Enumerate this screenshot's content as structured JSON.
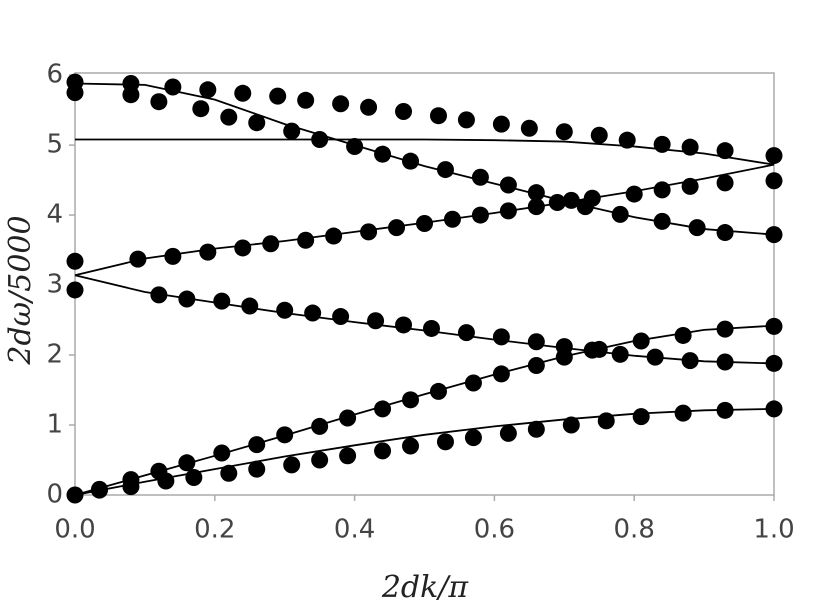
{
  "chart_data": {
    "type": "line",
    "x_label": "2dk/π",
    "y_label": "2dω/5000",
    "xlim": [
      0,
      1
    ],
    "ylim": [
      0,
      6.03
    ],
    "xticks": [
      {
        "value": 0,
        "label": "0.0"
      },
      0.2,
      0.4,
      0.6,
      0.8,
      {
        "value": 1,
        "label": "1.0"
      }
    ],
    "yticks": [
      0,
      1,
      2,
      3,
      4,
      5,
      6
    ],
    "series": [
      {
        "type": "line",
        "color": "#000000",
        "x": [
          0,
          0.1,
          0.2,
          0.3,
          0.4,
          0.5,
          0.6,
          0.7,
          0.8,
          0.9,
          1.0
        ],
        "values": [
          0,
          0.19,
          0.37,
          0.55,
          0.71,
          0.86,
          0.98,
          1.08,
          1.16,
          1.21,
          1.23
        ]
      },
      {
        "type": "line",
        "color": "#000000",
        "x": [
          0,
          0.1,
          0.2,
          0.3,
          0.4,
          0.5,
          0.6,
          0.7,
          0.8,
          0.9,
          1.0
        ],
        "values": [
          0,
          0.28,
          0.56,
          0.85,
          1.15,
          1.44,
          1.72,
          1.98,
          2.2,
          2.36,
          2.42
        ]
      },
      {
        "type": "line",
        "color": "#000000",
        "x": [
          0,
          0.1,
          0.2,
          0.3,
          0.4,
          0.5,
          0.6,
          0.7,
          0.8,
          0.9,
          1.0
        ],
        "values": [
          3.14,
          2.9,
          2.75,
          2.6,
          2.47,
          2.35,
          2.22,
          2.1,
          1.99,
          1.91,
          1.88
        ]
      },
      {
        "type": "line",
        "color": "#000000",
        "x": [
          0,
          0.1,
          0.2,
          0.3,
          0.4,
          0.5,
          0.6,
          0.7,
          0.8,
          0.9,
          1.0
        ],
        "values": [
          3.14,
          3.38,
          3.52,
          3.63,
          3.76,
          3.89,
          4.03,
          4.18,
          4.34,
          4.52,
          4.72
        ]
      },
      {
        "type": "line",
        "color": "#000000",
        "x": [
          0,
          0.1,
          0.2,
          0.3,
          0.4,
          0.5,
          0.6,
          0.7,
          0.8,
          0.9,
          1.0
        ],
        "values": [
          5.08,
          5.08,
          5.08,
          5.08,
          5.08,
          5.08,
          5.07,
          5.05,
          4.98,
          4.88,
          4.72
        ]
      },
      {
        "type": "line",
        "color": "#000000",
        "x": [
          0,
          0.1,
          0.2,
          0.3,
          0.4,
          0.5,
          0.6,
          0.7,
          0.8,
          0.9,
          1.0
        ],
        "values": [
          5.88,
          5.86,
          5.65,
          5.3,
          5.0,
          4.7,
          4.45,
          4.2,
          3.97,
          3.8,
          3.72
        ]
      },
      {
        "type": "scatter",
        "color": "#000000",
        "x": [
          0,
          0.035,
          0.08,
          0.13,
          0.17,
          0.22,
          0.26,
          0.31,
          0.35,
          0.39,
          0.44,
          0.48,
          0.53,
          0.57,
          0.62,
          0.66,
          0.71,
          0.76,
          0.81,
          0.87,
          0.93,
          1.0
        ],
        "values": [
          0,
          0.07,
          0.12,
          0.2,
          0.25,
          0.31,
          0.37,
          0.43,
          0.5,
          0.56,
          0.63,
          0.7,
          0.76,
          0.82,
          0.88,
          0.94,
          1.0,
          1.06,
          1.12,
          1.17,
          1.21,
          1.23
        ]
      },
      {
        "type": "scatter",
        "color": "#000000",
        "x": [
          0.035,
          0.08,
          0.12,
          0.16,
          0.21,
          0.26,
          0.3,
          0.35,
          0.39,
          0.44,
          0.48,
          0.52,
          0.57,
          0.61,
          0.66,
          0.7,
          0.75,
          0.81,
          0.87,
          0.93,
          1.0
        ],
        "values": [
          0.08,
          0.22,
          0.34,
          0.46,
          0.6,
          0.72,
          0.86,
          0.98,
          1.1,
          1.23,
          1.36,
          1.48,
          1.6,
          1.73,
          1.85,
          1.97,
          2.08,
          2.2,
          2.28,
          2.37,
          2.41
        ]
      },
      {
        "type": "scatter",
        "color": "#000000",
        "x": [
          0,
          0.12,
          0.16,
          0.21,
          0.25,
          0.3,
          0.34,
          0.38,
          0.43,
          0.47,
          0.51,
          0.56,
          0.61,
          0.66,
          0.7,
          0.74,
          0.78,
          0.83,
          0.88,
          0.93,
          1.0
        ],
        "values": [
          2.93,
          2.86,
          2.8,
          2.77,
          2.7,
          2.64,
          2.6,
          2.55,
          2.49,
          2.43,
          2.38,
          2.32,
          2.26,
          2.19,
          2.12,
          2.07,
          2.01,
          1.97,
          1.92,
          1.9,
          1.88
        ]
      },
      {
        "type": "scatter",
        "color": "#000000",
        "x": [
          0,
          0.09,
          0.14,
          0.19,
          0.24,
          0.28,
          0.33,
          0.37,
          0.42,
          0.46,
          0.5,
          0.54,
          0.58,
          0.62,
          0.66,
          0.69,
          0.74,
          0.8,
          0.84,
          0.88,
          0.93,
          1.0
        ],
        "values": [
          3.34,
          3.37,
          3.41,
          3.47,
          3.53,
          3.59,
          3.64,
          3.7,
          3.76,
          3.82,
          3.88,
          3.94,
          4.0,
          4.06,
          4.12,
          4.18,
          4.24,
          4.3,
          4.36,
          4.41,
          4.46,
          4.49
        ]
      },
      {
        "type": "scatter",
        "color": "#000000",
        "x": [
          0,
          0.08,
          0.14,
          0.19,
          0.24,
          0.29,
          0.33,
          0.38,
          0.42,
          0.47,
          0.52,
          0.56,
          0.61,
          0.65,
          0.7,
          0.75,
          0.79,
          0.84,
          0.88,
          0.93,
          1.0
        ],
        "values": [
          5.9,
          5.88,
          5.83,
          5.79,
          5.74,
          5.7,
          5.64,
          5.59,
          5.54,
          5.48,
          5.42,
          5.36,
          5.3,
          5.24,
          5.19,
          5.14,
          5.07,
          5.01,
          4.97,
          4.92,
          4.85
        ]
      },
      {
        "type": "scatter",
        "color": "#000000",
        "x": [
          0,
          0.08,
          0.12,
          0.18,
          0.22,
          0.26,
          0.31,
          0.35,
          0.4,
          0.44,
          0.48,
          0.53,
          0.58,
          0.62,
          0.66,
          0.71,
          0.73,
          0.78,
          0.84,
          0.89,
          0.93,
          1.0
        ],
        "values": [
          5.75,
          5.72,
          5.62,
          5.52,
          5.4,
          5.32,
          5.2,
          5.08,
          4.98,
          4.87,
          4.77,
          4.65,
          4.54,
          4.43,
          4.32,
          4.21,
          4.12,
          4.01,
          3.91,
          3.82,
          3.75,
          3.72
        ]
      }
    ]
  }
}
